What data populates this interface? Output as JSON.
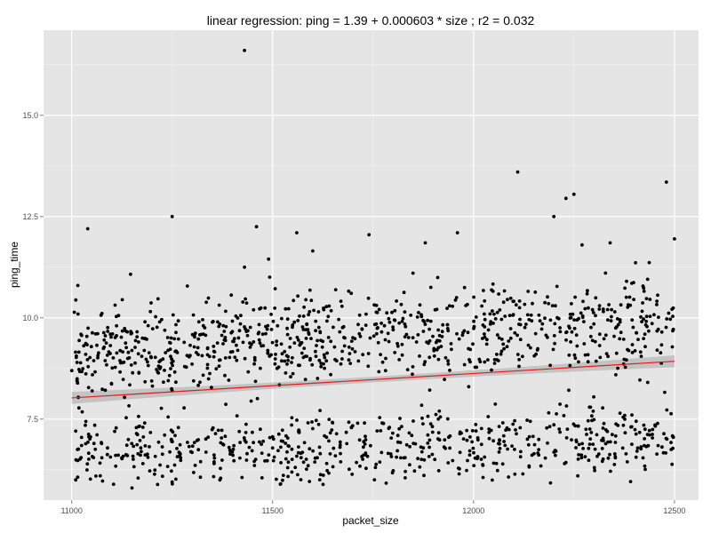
{
  "chart_data": {
    "type": "scatter",
    "title": "linear regression: ping = 1.39 + 0.000603 * size ; r2 = 0.032",
    "xlabel": "packet_size",
    "ylabel": "ping_time",
    "xlim": [
      10930,
      12560
    ],
    "ylim": [
      5.5,
      17.1
    ],
    "grid": true,
    "background": "#e5e5e5",
    "point_color": "#000000",
    "x_ticks": [
      {
        "value": 11000,
        "label": "11000"
      },
      {
        "value": 11500,
        "label": "11500"
      },
      {
        "value": 12000,
        "label": "12000"
      },
      {
        "value": 12500,
        "label": "12500"
      }
    ],
    "y_ticks": [
      {
        "value": 7.5,
        "label": "7.5"
      },
      {
        "value": 10.0,
        "label": "10.0"
      },
      {
        "value": 12.5,
        "label": "12.5"
      },
      {
        "value": 15.0,
        "label": "15.0"
      }
    ],
    "regression": {
      "intercept": 1.39,
      "slope": 0.000603,
      "r2": 0.032,
      "x_range": [
        11000,
        12500
      ],
      "line_color": "#e41a1c",
      "band_color": "#a8a8a8",
      "band_halfwidth_at_ends": 0.15,
      "band_halfwidth_at_center": 0.07
    },
    "outliers": [
      {
        "x": 11430,
        "y": 16.6
      },
      {
        "x": 12110,
        "y": 13.6
      },
      {
        "x": 12480,
        "y": 13.35
      },
      {
        "x": 12250,
        "y": 13.05
      },
      {
        "x": 12230,
        "y": 12.95
      },
      {
        "x": 12200,
        "y": 12.5
      },
      {
        "x": 11250,
        "y": 12.5
      },
      {
        "x": 11040,
        "y": 12.2
      },
      {
        "x": 11460,
        "y": 12.25
      },
      {
        "x": 11560,
        "y": 12.1
      },
      {
        "x": 11740,
        "y": 12.05
      },
      {
        "x": 11960,
        "y": 12.1
      },
      {
        "x": 12500,
        "y": 11.95
      },
      {
        "x": 11880,
        "y": 11.85
      },
      {
        "x": 12270,
        "y": 11.8
      },
      {
        "x": 12340,
        "y": 11.85
      },
      {
        "x": 11600,
        "y": 11.65
      },
      {
        "x": 11430,
        "y": 11.25
      },
      {
        "x": 11490,
        "y": 11.45
      },
      {
        "x": 11150,
        "y": 5.8
      },
      {
        "x": 11250,
        "y": 5.95
      },
      {
        "x": 11010,
        "y": 6.0
      },
      {
        "x": 11830,
        "y": 6.05
      }
    ],
    "clusters": {
      "description": "Bimodal point cloud: an upper band centred near y = 9.2 + 0.0005*(x-11000) and a lower band centred near y = 6.7",
      "upper_band_center": [
        9.2,
        9.95
      ],
      "lower_band_center": [
        6.75,
        6.95
      ],
      "n_points_approx": 1500
    }
  }
}
